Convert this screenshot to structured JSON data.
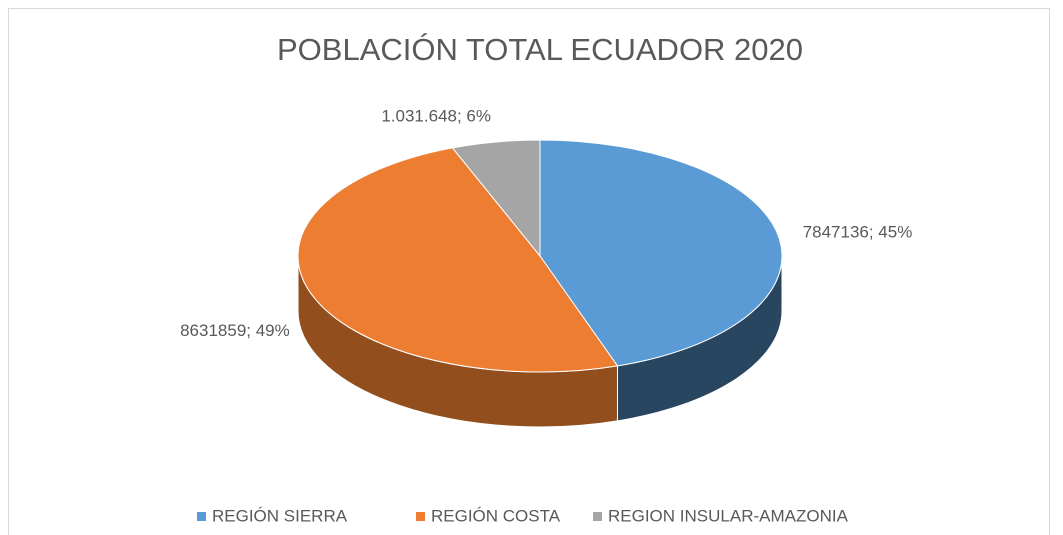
{
  "chart_data": {
    "type": "pie",
    "title": "POBLACIÓN TOTAL ECUADOR 2020",
    "categories": [
      "REGIÓN SIERRA",
      "REGIÓN COSTA",
      "REGION INSULAR-AMAZONIA"
    ],
    "values": [
      7847136,
      8631859,
      1031648
    ],
    "value_labels": [
      "7847136; 45%",
      "8631859; 49%",
      "1.031.648; 6%"
    ],
    "colors": [
      "#5b9bd5",
      "#ed7d31",
      "#a5a5a5"
    ],
    "legend": "bottom"
  }
}
